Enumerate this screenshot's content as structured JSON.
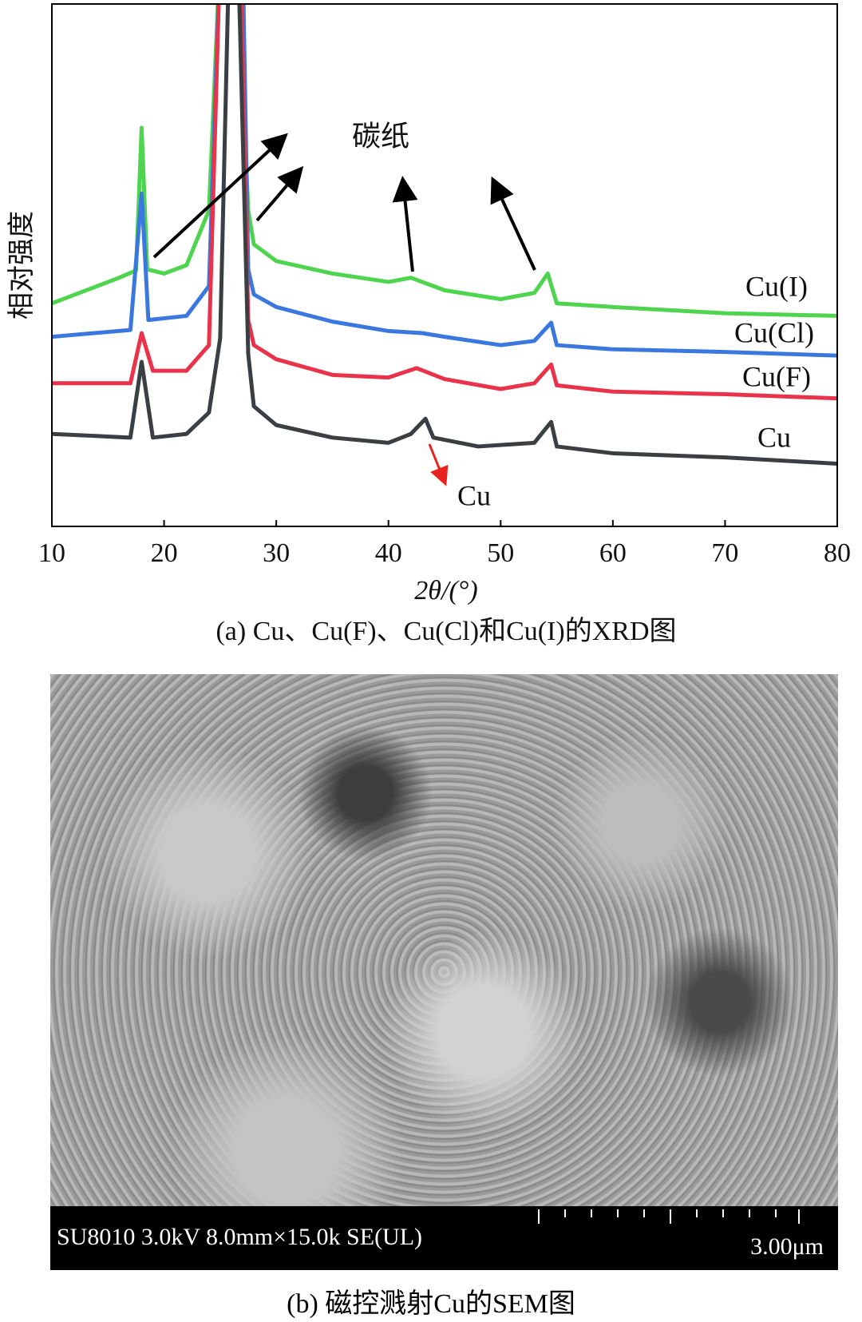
{
  "chart_data": {
    "type": "line",
    "y_label": "相对强度",
    "x_label": "2θ/(°)",
    "xlim": [
      10,
      80
    ],
    "xticks": [
      10,
      20,
      30,
      40,
      50,
      60,
      70,
      80
    ],
    "ylim": [
      0,
      100
    ],
    "annotations": [
      "碳纸",
      "Cu"
    ],
    "caption": "(a) Cu、Cu(F)、Cu(Cl)和Cu(I)的XRD图",
    "series": [
      {
        "name": "Cu(I)",
        "color": "#4fd44f",
        "x": [
          10,
          16,
          17.5,
          18,
          18.5,
          20,
          22,
          24,
          25,
          26.5,
          27.5,
          28,
          30,
          35,
          40,
          42,
          45,
          50,
          53,
          54.2,
          55,
          60,
          70,
          80
        ],
        "values": [
          42.7,
          47.6,
          49,
          76.3,
          49.2,
          48.4,
          50,
          60.5,
          110,
          110,
          60.5,
          54,
          50.8,
          48.4,
          46.8,
          47.6,
          45.2,
          43.5,
          44.7,
          48.4,
          42.7,
          42,
          40.8,
          40.3
        ]
      },
      {
        "name": "Cu(Cl)",
        "color": "#3a78e0",
        "x": [
          10,
          17,
          18,
          18.6,
          22,
          24,
          25,
          27,
          27.5,
          28,
          30,
          35,
          40,
          43,
          45,
          50,
          53,
          54.5,
          55,
          60,
          70,
          80
        ],
        "values": [
          36.3,
          37.6,
          63.7,
          39.5,
          40.3,
          46,
          110,
          110,
          49.2,
          44.4,
          42,
          39.2,
          37.4,
          37,
          36.3,
          34.7,
          35.5,
          39,
          34.7,
          33.9,
          33.4,
          32.7
        ]
      },
      {
        "name": "Cu(F)",
        "color": "#e8334a",
        "x": [
          10,
          17,
          18,
          19,
          22,
          24,
          25,
          26.8,
          27.5,
          28,
          30,
          35,
          40,
          42.5,
          45,
          50,
          53,
          54.5,
          55,
          60,
          70,
          80
        ],
        "values": [
          27.4,
          27.4,
          37,
          29.8,
          29.8,
          34.7,
          110,
          110,
          39.5,
          34.7,
          32,
          29,
          28.5,
          30.3,
          28.2,
          26.3,
          27.4,
          31,
          27,
          25.8,
          25.3,
          24.5
        ]
      },
      {
        "name": "Cu",
        "color": "#3a3f44",
        "x": [
          10,
          17,
          18,
          19,
          22,
          24,
          25,
          25.8,
          26.6,
          27.5,
          28,
          30,
          35,
          40,
          42,
          43.3,
          44,
          48,
          53,
          54.5,
          55,
          60,
          70,
          80
        ],
        "values": [
          17.7,
          17,
          31.5,
          17,
          17.7,
          21.8,
          36,
          110,
          110,
          33,
          23,
          19.4,
          17,
          16,
          17.7,
          20.6,
          17,
          15.3,
          16,
          20,
          15.3,
          14,
          13.2,
          12
        ]
      }
    ]
  },
  "sem_image": {
    "info": "SU8010 3.0kV 8.0mm×15.0k SE(UL)",
    "scale": "3.00μm",
    "caption": "(b) 磁控溅射Cu的SEM图"
  }
}
